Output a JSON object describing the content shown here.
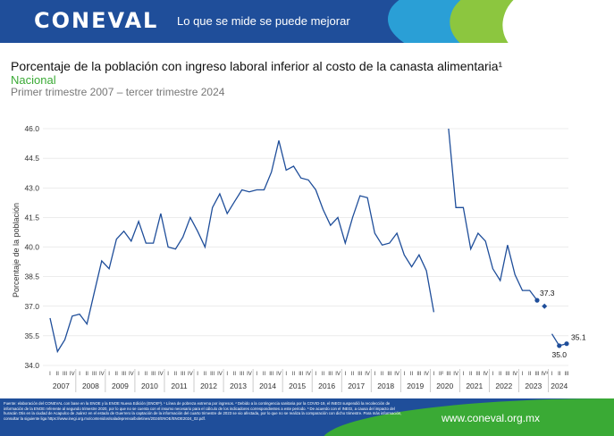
{
  "header": {
    "logo": "CONEVAL",
    "tagline": "Lo que se mide se puede mejorar"
  },
  "footer": {
    "note": "Fuente: elaboración del CONEVAL con base en la ENOE y la ENOE Nueva Edición (ENOEᴺ). ¹ Línea de pobreza extrema por ingresos. ² Debido a la contingencia sanitaria por la COVID-19, el INEGI suspendió la recolección de información de la ENOE referente al segundo trimestre 2020, por lo que no se cuenta con el insumo necesario para el cálculo de los indicadores correspondientes a este periodo. ³ De acuerdo con el INEGI, a causa del impacto del huracán Otis en la ciudad de Acapulco de Juárez en el estado de Guerrero la captación de la información del cuarto trimestre de 2023 se vio afectada, por lo que no se realiza la comparación con dicho trimestre. Para más información, consultar la siguiente liga https://www.inegi.org.mx/contenidos/saladeprensa/boletines/2024/ENOE/ENOE2024_02.pdf.",
    "url": "www.coneval.org.mx"
  },
  "chart_data": {
    "type": "line",
    "title": "Porcentaje de la población con ingreso laboral inferior al costo de la canasta alimentaria¹",
    "subtitle": "Nacional",
    "period": "Primer trimestre 2007 – tercer trimestre 2024",
    "ylabel": "Porcentaje de la población",
    "ylim": [
      34.0,
      46.0
    ],
    "yticks": [
      "34.0",
      "35.5",
      "37.0",
      "38.5",
      "40.0",
      "41.5",
      "43.0",
      "44.5",
      "46.0"
    ],
    "years": [
      "2007",
      "2008",
      "2009",
      "2010",
      "2011",
      "2012",
      "2013",
      "2014",
      "2015",
      "2016",
      "2017",
      "2018",
      "2019",
      "2020",
      "2021",
      "2022",
      "2023",
      "2024"
    ],
    "quarter_labels": [
      "I",
      "II",
      "III",
      "IV"
    ],
    "special_quarter_labels": {
      "2020": [
        "I",
        "II²",
        "III",
        "IV"
      ],
      "2023": [
        "I",
        "II",
        "III",
        "IV³"
      ]
    },
    "series": [
      {
        "values": [
          36.4,
          34.7,
          35.3,
          36.5,
          36.6,
          36.1,
          37.7,
          39.3,
          38.9,
          40.4,
          40.8,
          40.3,
          41.3,
          40.2,
          40.2,
          41.7,
          40.0,
          39.9,
          40.5,
          41.5,
          40.8,
          40.0,
          42.0,
          42.7,
          41.7,
          42.3,
          42.9,
          42.8,
          42.9,
          42.9,
          43.8,
          45.4,
          43.9,
          44.1,
          43.5,
          43.4,
          42.9,
          41.9,
          41.1,
          41.5,
          40.2,
          41.5,
          42.6,
          42.5,
          40.7,
          40.1,
          40.2,
          40.7,
          39.6,
          39.0,
          39.6,
          38.8,
          36.7,
          null,
          46.0,
          42.0,
          42.0,
          39.9,
          40.7,
          40.3,
          38.9,
          38.3,
          40.1,
          38.6,
          37.8,
          37.8,
          37.3,
          37.0,
          35.6,
          35.0,
          35.1
        ],
        "color": "#1f4e9a"
      }
    ],
    "breaks_before_index": [
      54,
      67
    ],
    "isolated_points": [
      67
    ],
    "marker_points": [
      66,
      69,
      70
    ],
    "annotations": [
      {
        "index": 66,
        "label": "37.3"
      },
      {
        "index": 69,
        "label": "35.0"
      },
      {
        "index": 70,
        "label": "35.1"
      }
    ]
  }
}
